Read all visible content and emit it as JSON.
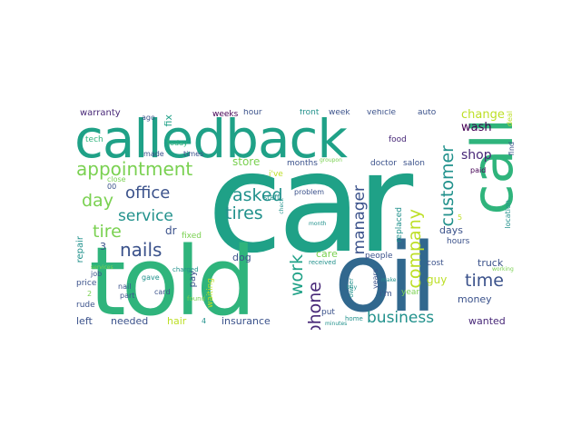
{
  "title": "Word cloud",
  "palette": {
    "yellow": "#bddf26",
    "lime": "#7ad151",
    "green": "#2fb47c",
    "teal": "#1fa187",
    "cyan": "#21918c",
    "blue": "#31688e",
    "indigo": "#3b528b",
    "purple": "#482878",
    "violet": "#440154"
  },
  "words": [
    {
      "text": "car",
      "color": "teal"
    },
    {
      "text": "told",
      "color": "green"
    },
    {
      "text": "oil",
      "color": "blue"
    },
    {
      "text": "calledback",
      "color": "teal"
    },
    {
      "text": "call",
      "color": "green"
    },
    {
      "text": "appointment",
      "color": "lime"
    },
    {
      "text": "office",
      "color": "indigo"
    },
    {
      "text": "day",
      "color": "lime"
    },
    {
      "text": "service",
      "color": "cyan"
    },
    {
      "text": "tire",
      "color": "lime"
    },
    {
      "text": "nails",
      "color": "indigo"
    },
    {
      "text": "asked",
      "color": "cyan"
    },
    {
      "text": "tires",
      "color": "cyan"
    },
    {
      "text": "manager",
      "color": "indigo"
    },
    {
      "text": "work",
      "color": "teal"
    },
    {
      "text": "phone",
      "color": "purple"
    },
    {
      "text": "company",
      "color": "yellow"
    },
    {
      "text": "customer",
      "color": "cyan"
    },
    {
      "text": "business",
      "color": "cyan"
    },
    {
      "text": "time",
      "color": "indigo"
    },
    {
      "text": "shop",
      "color": "purple"
    },
    {
      "text": "change",
      "color": "yellow"
    },
    {
      "text": "wash",
      "color": "violet"
    },
    {
      "text": "warranty",
      "color": "purple"
    },
    {
      "text": "tech",
      "color": "green"
    },
    {
      "text": "ago",
      "color": "indigo"
    },
    {
      "text": "fix",
      "color": "teal"
    },
    {
      "text": "hour",
      "color": "indigo"
    },
    {
      "text": "front",
      "color": "cyan"
    },
    {
      "text": "week",
      "color": "indigo"
    },
    {
      "text": "vehicle",
      "color": "indigo"
    },
    {
      "text": "auto",
      "color": "indigo"
    },
    {
      "text": "today",
      "color": "green"
    },
    {
      "text": "weeks",
      "color": "violet"
    },
    {
      "text": "made",
      "color": "indigo"
    },
    {
      "text": "times",
      "color": "indigo"
    },
    {
      "text": "store",
      "color": "lime"
    },
    {
      "text": "i've",
      "color": "yellow"
    },
    {
      "text": "months",
      "color": "indigo"
    },
    {
      "text": "groupon",
      "color": "lime"
    },
    {
      "text": "doctor",
      "color": "indigo"
    },
    {
      "text": "salon",
      "color": "indigo"
    },
    {
      "text": "food",
      "color": "purple"
    },
    {
      "text": "paid",
      "color": "violet"
    },
    {
      "text": "find",
      "color": "indigo"
    },
    {
      "text": "deal",
      "color": "yellow"
    },
    {
      "text": "close",
      "color": "lime"
    },
    {
      "text": "00",
      "color": "indigo"
    },
    {
      "text": "dr",
      "color": "indigo"
    },
    {
      "text": "fixed",
      "color": "lime"
    },
    {
      "text": "staff",
      "color": "cyan"
    },
    {
      "text": "check",
      "color": "cyan"
    },
    {
      "text": "problem",
      "color": "indigo"
    },
    {
      "text": "month",
      "color": "cyan"
    },
    {
      "text": "replaced",
      "color": "cyan"
    },
    {
      "text": "5",
      "color": "yellow"
    },
    {
      "text": "hours",
      "color": "indigo"
    },
    {
      "text": "location",
      "color": "cyan"
    },
    {
      "text": "3",
      "color": "indigo"
    },
    {
      "text": "repair",
      "color": "cyan"
    },
    {
      "text": "pay",
      "color": "indigo"
    },
    {
      "text": "dog",
      "color": "indigo"
    },
    {
      "text": "care",
      "color": "lime"
    },
    {
      "text": "days",
      "color": "indigo"
    },
    {
      "text": "received",
      "color": "cyan"
    },
    {
      "text": "years",
      "color": "indigo"
    },
    {
      "text": "people",
      "color": "indigo"
    },
    {
      "text": "truck",
      "color": "indigo"
    },
    {
      "text": "guy",
      "color": "yellow"
    },
    {
      "text": "working",
      "color": "lime"
    },
    {
      "text": "job",
      "color": "indigo"
    },
    {
      "text": "gave",
      "color": "cyan"
    },
    {
      "text": "price",
      "color": "indigo"
    },
    {
      "text": "nail",
      "color": "indigo"
    },
    {
      "text": "2",
      "color": "lime"
    },
    {
      "text": "part",
      "color": "indigo"
    },
    {
      "text": "card",
      "color": "indigo"
    },
    {
      "text": "rude",
      "color": "indigo"
    },
    {
      "text": "found",
      "color": "lime"
    },
    {
      "text": "waiting",
      "color": "yellow"
    },
    {
      "text": "owner",
      "color": "cyan"
    },
    {
      "text": "buy",
      "color": "cyan"
    },
    {
      "text": "make",
      "color": "cyan"
    },
    {
      "text": "cost",
      "color": "indigo"
    },
    {
      "text": "put",
      "color": "indigo"
    },
    {
      "text": "i'm",
      "color": "indigo"
    },
    {
      "text": "year",
      "color": "lime"
    },
    {
      "text": "money",
      "color": "indigo"
    },
    {
      "text": "minutes",
      "color": "cyan"
    },
    {
      "text": "home",
      "color": "cyan"
    },
    {
      "text": "left",
      "color": "indigo"
    },
    {
      "text": "needed",
      "color": "indigo"
    },
    {
      "text": "hair",
      "color": "yellow"
    },
    {
      "text": "4",
      "color": "cyan"
    },
    {
      "text": "insurance",
      "color": "indigo"
    },
    {
      "text": "wanted",
      "color": "purple"
    },
    {
      "text": "charged",
      "color": "cyan"
    },
    {
      "text": "services",
      "color": "lime"
    }
  ]
}
